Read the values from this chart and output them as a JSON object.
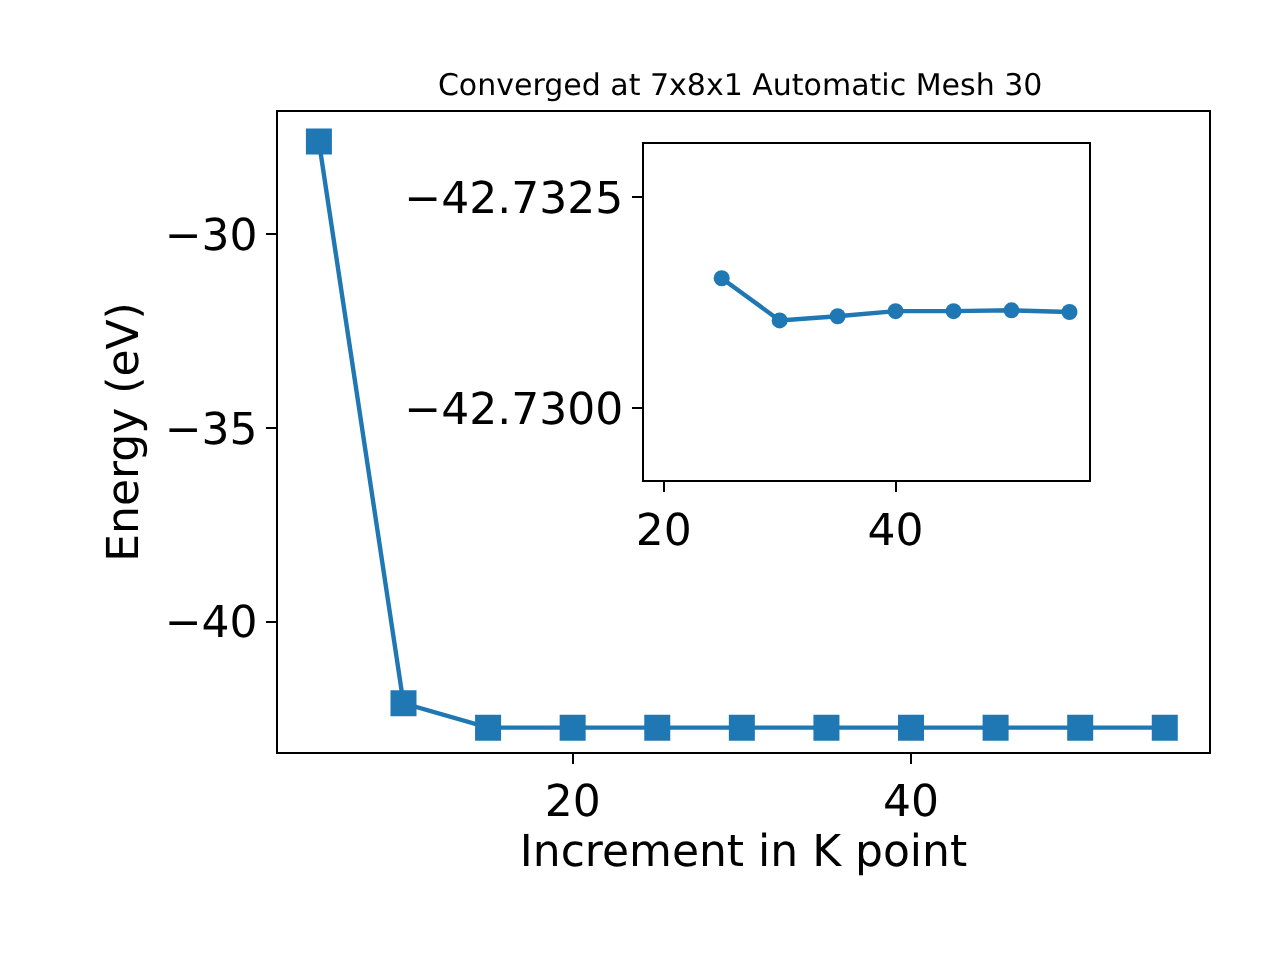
{
  "chart_data": [
    {
      "type": "line",
      "title": "Converged at 7x8x1 Automatic Mesh 30",
      "xlabel": "Increment in K point",
      "ylabel": "Energy (eV)",
      "x": [
        5,
        10,
        15,
        20,
        25,
        30,
        35,
        40,
        45,
        50,
        55
      ],
      "series": [
        {
          "color": "#1f77b4",
          "values": [
            -27.6,
            -42.1,
            -42.73,
            -42.73,
            -42.73,
            -42.73,
            -42.73,
            -42.73,
            -42.73,
            -42.73,
            -42.73
          ]
        }
      ],
      "xlim": [
        2.6,
        57.6
      ],
      "ylim": [
        -43.35,
        -26.85
      ],
      "xticks": [
        20,
        40
      ],
      "yticks": [
        -40,
        -35,
        -30
      ],
      "marker": "square",
      "line_style": "solid"
    },
    {
      "type": "line",
      "x": [
        25,
        30,
        35,
        40,
        45,
        50,
        55
      ],
      "series": [
        {
          "color": "#1f77b4",
          "values": [
            -42.73154,
            -42.73104,
            -42.73109,
            -42.73115,
            -42.73115,
            -42.73116,
            -42.73114
          ]
        }
      ],
      "xlim": [
        18.3,
        56.7
      ],
      "ylim": [
        -42.72915,
        -42.73313
      ],
      "xticks": [
        20,
        40
      ],
      "yticks": [
        {
          "value": -42.7325,
          "label": "−42.7325"
        },
        {
          "value": -42.73,
          "label": "−42.7300"
        }
      ],
      "marker": "circle",
      "line_style": "solid"
    }
  ]
}
